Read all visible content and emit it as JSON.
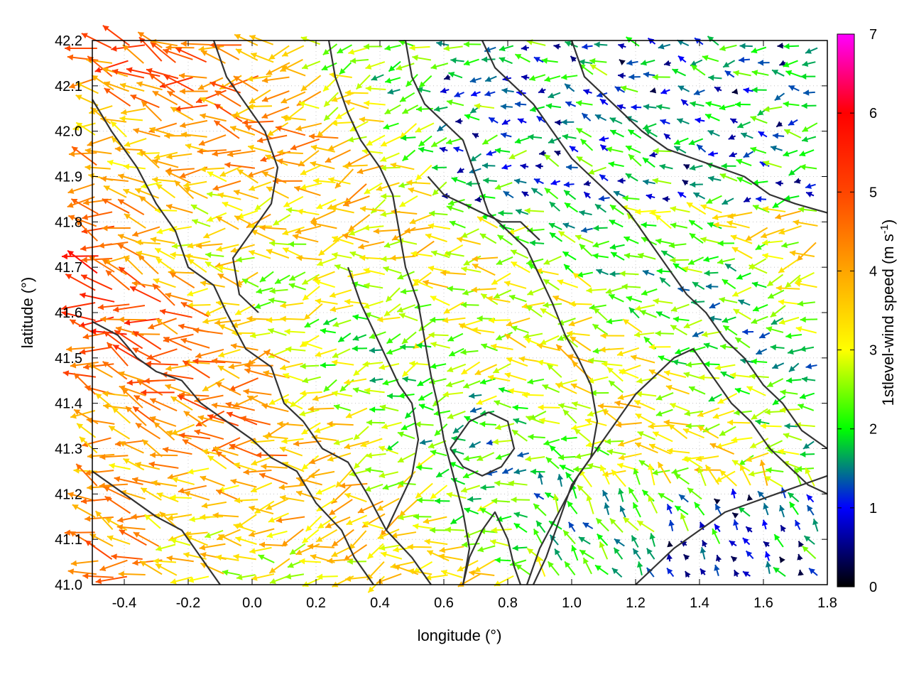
{
  "chart_data": {
    "type": "vector-field",
    "xlabel": "longitude (°)",
    "ylabel": "latitude (°)",
    "xlim": [
      -0.5,
      1.8
    ],
    "ylim": [
      41.0,
      42.2
    ],
    "xticks": [
      {
        "value": -0.4,
        "label": "-0.4"
      },
      {
        "value": -0.2,
        "label": "-0.2"
      },
      {
        "value": 0.0,
        "label": "0.0"
      },
      {
        "value": 0.2,
        "label": "0.2"
      },
      {
        "value": 0.4,
        "label": "0.4"
      },
      {
        "value": 0.6,
        "label": "0.6"
      },
      {
        "value": 0.8,
        "label": "0.8"
      },
      {
        "value": 1.0,
        "label": "1.0"
      },
      {
        "value": 1.2,
        "label": "1.2"
      },
      {
        "value": 1.4,
        "label": "1.4"
      },
      {
        "value": 1.6,
        "label": "1.6"
      },
      {
        "value": 1.8,
        "label": "1.8"
      }
    ],
    "yticks": [
      {
        "value": 41.0,
        "label": "41.0"
      },
      {
        "value": 41.1,
        "label": "41.1"
      },
      {
        "value": 41.2,
        "label": "41.2"
      },
      {
        "value": 41.3,
        "label": "41.3"
      },
      {
        "value": 41.4,
        "label": "41.4"
      },
      {
        "value": 41.5,
        "label": "41.5"
      },
      {
        "value": 41.6,
        "label": "41.6"
      },
      {
        "value": 41.7,
        "label": "41.7"
      },
      {
        "value": 41.8,
        "label": "41.8"
      },
      {
        "value": 41.9,
        "label": "41.9"
      },
      {
        "value": 42.0,
        "label": "42.0"
      },
      {
        "value": 42.1,
        "label": "42.1"
      },
      {
        "value": 42.2,
        "label": "42.2"
      }
    ],
    "grid": true,
    "colorbar": {
      "label": "1stlevel-wind speed (m s",
      "label_superscript": "-1",
      "label_suffix": ")",
      "range": [
        0,
        7
      ],
      "ticks": [
        {
          "value": 0,
          "label": "0"
        },
        {
          "value": 1,
          "label": "1"
        },
        {
          "value": 2,
          "label": "2"
        },
        {
          "value": 3,
          "label": "3"
        },
        {
          "value": 4,
          "label": "4"
        },
        {
          "value": 5,
          "label": "5"
        },
        {
          "value": 6,
          "label": "6"
        },
        {
          "value": 7,
          "label": "7"
        }
      ],
      "colors": [
        "#000000",
        "#0000ff",
        "#00ff00",
        "#ffff00",
        "#ffa500",
        "#ff4500",
        "#ff0000",
        "#ff00ff"
      ]
    },
    "contour_color": "#333333",
    "contours": [
      [
        [
          -0.5,
          42.07
        ],
        [
          -0.44,
          42.0
        ],
        [
          -0.36,
          41.92
        ],
        [
          -0.3,
          41.84
        ],
        [
          -0.24,
          41.78
        ],
        [
          -0.2,
          41.7
        ],
        [
          -0.12,
          41.66
        ],
        [
          -0.08,
          41.6
        ],
        [
          -0.02,
          41.52
        ],
        [
          0.06,
          41.48
        ],
        [
          0.1,
          41.4
        ],
        [
          0.16,
          41.36
        ],
        [
          0.22,
          41.3
        ],
        [
          0.3,
          41.27
        ],
        [
          0.36,
          41.2
        ],
        [
          0.42,
          41.12
        ],
        [
          0.5,
          41.06
        ],
        [
          0.56,
          41.0
        ]
      ],
      [
        [
          -0.5,
          41.58
        ],
        [
          -0.42,
          41.55
        ],
        [
          -0.36,
          41.5
        ],
        [
          -0.3,
          41.47
        ],
        [
          -0.22,
          41.45
        ],
        [
          -0.16,
          41.4
        ],
        [
          -0.08,
          41.36
        ],
        [
          0.0,
          41.32
        ],
        [
          0.06,
          41.28
        ],
        [
          0.14,
          41.25
        ],
        [
          0.2,
          41.18
        ],
        [
          0.28,
          41.12
        ],
        [
          0.32,
          41.06
        ],
        [
          0.38,
          41.0
        ]
      ],
      [
        [
          -0.5,
          41.25
        ],
        [
          -0.4,
          41.2
        ],
        [
          -0.3,
          41.15
        ],
        [
          -0.22,
          41.12
        ],
        [
          -0.16,
          41.06
        ],
        [
          -0.1,
          41.0
        ]
      ],
      [
        [
          0.24,
          42.2
        ],
        [
          0.26,
          42.12
        ],
        [
          0.3,
          42.04
        ],
        [
          0.34,
          41.98
        ],
        [
          0.4,
          41.92
        ],
        [
          0.44,
          41.86
        ],
        [
          0.46,
          41.78
        ],
        [
          0.48,
          41.7
        ],
        [
          0.52,
          41.62
        ],
        [
          0.54,
          41.54
        ],
        [
          0.56,
          41.46
        ],
        [
          0.58,
          41.4
        ],
        [
          0.6,
          41.32
        ],
        [
          0.63,
          41.24
        ],
        [
          0.66,
          41.16
        ],
        [
          0.68,
          41.08
        ],
        [
          0.66,
          41.0
        ]
      ],
      [
        [
          0.48,
          42.2
        ],
        [
          0.5,
          42.12
        ],
        [
          0.54,
          42.06
        ],
        [
          0.6,
          42.02
        ],
        [
          0.66,
          41.98
        ],
        [
          0.7,
          41.9
        ],
        [
          0.74,
          41.82
        ],
        [
          0.8,
          41.78
        ],
        [
          0.86,
          41.74
        ],
        [
          0.9,
          41.68
        ],
        [
          0.94,
          41.62
        ],
        [
          0.98,
          41.55
        ],
        [
          1.02,
          41.5
        ],
        [
          1.06,
          41.44
        ],
        [
          1.08,
          41.36
        ],
        [
          1.06,
          41.28
        ],
        [
          1.0,
          41.22
        ],
        [
          0.96,
          41.14
        ],
        [
          0.92,
          41.06
        ],
        [
          0.88,
          41.0
        ]
      ],
      [
        [
          0.72,
          42.2
        ],
        [
          0.76,
          42.14
        ],
        [
          0.82,
          42.1
        ],
        [
          0.88,
          42.06
        ],
        [
          0.94,
          42.0
        ],
        [
          1.0,
          41.94
        ],
        [
          1.06,
          41.9
        ],
        [
          1.12,
          41.86
        ],
        [
          1.18,
          41.82
        ],
        [
          1.24,
          41.76
        ],
        [
          1.3,
          41.7
        ],
        [
          1.36,
          41.64
        ],
        [
          1.42,
          41.6
        ],
        [
          1.48,
          41.54
        ],
        [
          1.54,
          41.5
        ],
        [
          1.6,
          41.44
        ],
        [
          1.66,
          41.4
        ],
        [
          1.72,
          41.34
        ],
        [
          1.8,
          41.3
        ]
      ],
      [
        [
          0.86,
          41.0
        ],
        [
          0.9,
          41.08
        ],
        [
          0.96,
          41.16
        ],
        [
          1.02,
          41.24
        ],
        [
          1.08,
          41.3
        ],
        [
          1.14,
          41.36
        ],
        [
          1.2,
          41.42
        ],
        [
          1.26,
          41.46
        ],
        [
          1.32,
          41.5
        ],
        [
          1.38,
          41.52
        ],
        [
          1.44,
          41.46
        ],
        [
          1.5,
          41.4
        ],
        [
          1.56,
          41.36
        ],
        [
          1.62,
          41.3
        ],
        [
          1.68,
          41.26
        ],
        [
          1.74,
          41.22
        ],
        [
          1.8,
          41.2
        ]
      ],
      [
        [
          1.2,
          41.0
        ],
        [
          1.26,
          41.04
        ],
        [
          1.32,
          41.08
        ],
        [
          1.4,
          41.12
        ],
        [
          1.48,
          41.16
        ],
        [
          1.56,
          41.18
        ],
        [
          1.64,
          41.2
        ],
        [
          1.72,
          41.22
        ],
        [
          1.8,
          41.24
        ]
      ],
      [
        [
          1.0,
          42.2
        ],
        [
          1.04,
          42.12
        ],
        [
          1.1,
          42.08
        ],
        [
          1.16,
          42.04
        ],
        [
          1.22,
          42.0
        ],
        [
          1.3,
          41.96
        ],
        [
          1.38,
          41.94
        ],
        [
          1.46,
          41.92
        ],
        [
          1.54,
          41.9
        ],
        [
          1.62,
          41.86
        ],
        [
          1.7,
          41.84
        ],
        [
          1.8,
          41.82
        ]
      ],
      [
        [
          -0.12,
          42.2
        ],
        [
          -0.08,
          42.12
        ],
        [
          -0.02,
          42.06
        ],
        [
          0.04,
          42.0
        ],
        [
          0.08,
          41.92
        ],
        [
          0.06,
          41.84
        ],
        [
          0.0,
          41.78
        ],
        [
          -0.06,
          41.72
        ],
        [
          -0.04,
          41.64
        ],
        [
          0.02,
          41.6
        ]
      ],
      [
        [
          0.3,
          41.7
        ],
        [
          0.34,
          41.62
        ],
        [
          0.38,
          41.56
        ],
        [
          0.42,
          41.5
        ],
        [
          0.46,
          41.44
        ],
        [
          0.5,
          41.4
        ],
        [
          0.52,
          41.32
        ],
        [
          0.5,
          41.24
        ],
        [
          0.46,
          41.18
        ],
        [
          0.42,
          41.12
        ]
      ],
      [
        [
          0.62,
          41.3
        ],
        [
          0.66,
          41.26
        ],
        [
          0.72,
          41.24
        ],
        [
          0.78,
          41.26
        ],
        [
          0.82,
          41.3
        ],
        [
          0.8,
          41.36
        ],
        [
          0.74,
          41.38
        ],
        [
          0.68,
          41.36
        ],
        [
          0.62,
          41.3
        ]
      ],
      [
        [
          0.66,
          41.0
        ],
        [
          0.68,
          41.06
        ],
        [
          0.72,
          41.12
        ],
        [
          0.76,
          41.16
        ],
        [
          0.8,
          41.1
        ],
        [
          0.82,
          41.04
        ],
        [
          0.84,
          41.0
        ]
      ],
      [
        [
          0.55,
          41.9
        ],
        [
          0.6,
          41.86
        ],
        [
          0.66,
          41.84
        ],
        [
          0.72,
          41.82
        ],
        [
          0.78,
          41.8
        ],
        [
          0.84,
          41.8
        ],
        [
          0.9,
          41.76
        ]
      ]
    ]
  }
}
